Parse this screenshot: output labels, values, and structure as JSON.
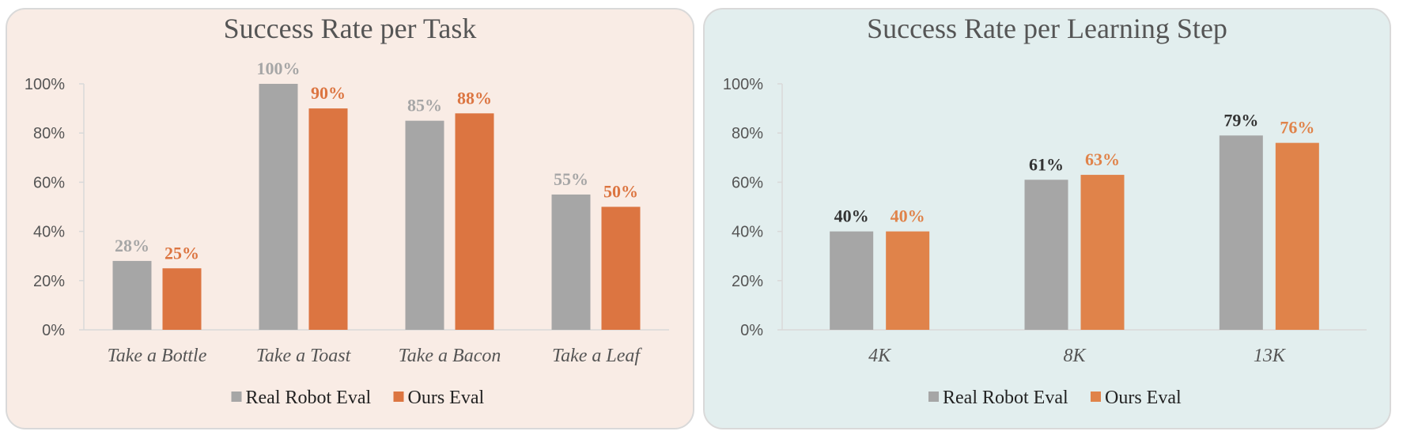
{
  "chart_data": [
    {
      "type": "bar",
      "title": "Success Rate per Task",
      "categories": [
        "Take a Bottle",
        "Take a Toast",
        "Take a Bacon",
        "Take a Leaf"
      ],
      "series": [
        {
          "name": "Real Robot Eval",
          "values": [
            28,
            100,
            85,
            55
          ],
          "color": "#a6a6a6",
          "label_color": "#a6a6a6"
        },
        {
          "name": "Ours Eval",
          "values": [
            25,
            90,
            88,
            50
          ],
          "color": "#dc7541",
          "label_color": "#dc7541"
        }
      ],
      "yticks": [
        "0%",
        "20%",
        "40%",
        "60%",
        "80%",
        "100%"
      ],
      "ylim": [
        0,
        100
      ],
      "legend": "bottom",
      "grid": false,
      "background": "#f9ece5"
    },
    {
      "type": "bar",
      "title": "Success Rate per Learning Step",
      "categories": [
        "4K",
        "8K",
        "13K"
      ],
      "series": [
        {
          "name": "Real Robot Eval",
          "values": [
            40,
            61,
            79
          ],
          "color": "#a6a6a6",
          "label_color": "#333333"
        },
        {
          "name": "Ours Eval",
          "values": [
            40,
            63,
            76
          ],
          "color": "#e0834a",
          "label_color": "#e0834a"
        }
      ],
      "yticks": [
        "0%",
        "20%",
        "40%",
        "60%",
        "80%",
        "100%"
      ],
      "ylim": [
        0,
        100
      ],
      "legend": "bottom",
      "grid": false,
      "background": "#e2eeee"
    }
  ]
}
